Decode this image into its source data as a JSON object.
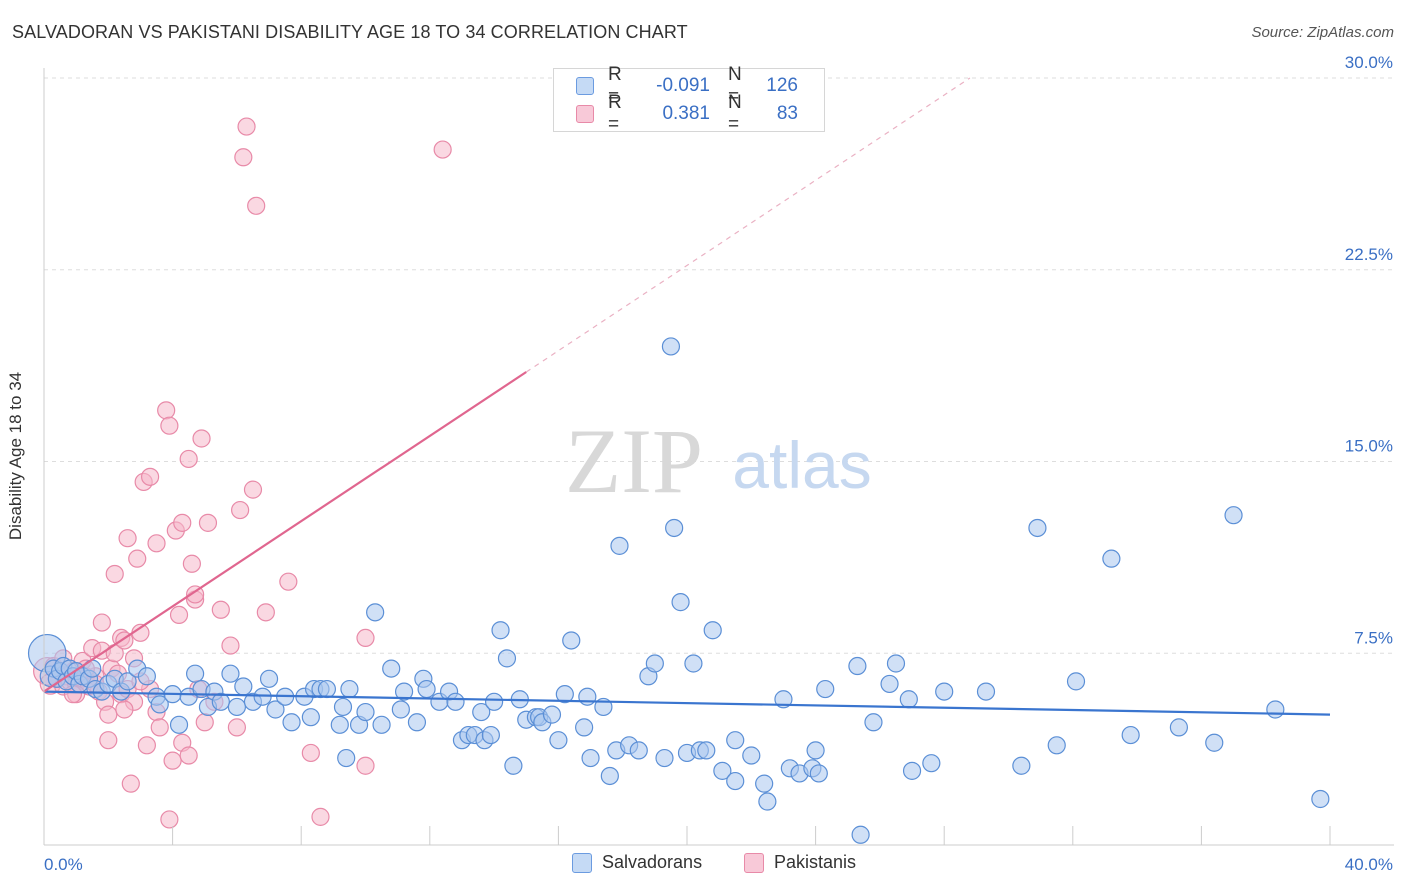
{
  "title": "SALVADORAN VS PAKISTANI DISABILITY AGE 18 TO 34 CORRELATION CHART",
  "source": "Source: ZipAtlas.com",
  "watermark": {
    "zip": "ZIP",
    "atlas": "atlas"
  },
  "colors": {
    "blue_fill": "#a9c7ee",
    "blue_stroke": "#5b8fd6",
    "blue_line": "#3a75cf",
    "pink_fill": "#f5b8cb",
    "pink_stroke": "#e88aa8",
    "pink_line": "#e0668f",
    "grid": "#dddddd",
    "tick_label": "#3a6fc4"
  },
  "legend": {
    "rows": [
      {
        "r_label": "R =",
        "r_value": "-0.091",
        "n_label": "N =",
        "n_value": "126"
      },
      {
        "r_label": "R =",
        "r_value": "0.381",
        "n_label": "N =",
        "n_value": "83"
      }
    ]
  },
  "bottom_legend": {
    "salvadorans": "Salvadorans",
    "pakistanis": "Pakistanis"
  },
  "chart_data": {
    "type": "scatter",
    "title": "SALVADORAN VS PAKISTANI DISABILITY AGE 18 TO 34 CORRELATION CHART",
    "xlabel": "",
    "ylabel": "Disability Age 18 to 34",
    "xlim": [
      0,
      40
    ],
    "ylim": [
      0,
      30
    ],
    "x_tick_labels": [
      "0.0%",
      "40.0%"
    ],
    "y_ticks": [
      7.5,
      15.0,
      22.5,
      30.0
    ],
    "y_tick_labels": [
      "7.5%",
      "15.0%",
      "22.5%",
      "30.0%"
    ],
    "grid": true,
    "series": [
      {
        "name": "Salvadorans",
        "color": "blue",
        "R": -0.091,
        "N": 126,
        "trend": {
          "x0": 0,
          "y0": 6.0,
          "x1": 40,
          "y1": 5.1
        },
        "points": [
          [
            0.1,
            7.5,
            2.2
          ],
          [
            0.2,
            6.6,
            1.2
          ],
          [
            0.3,
            6.9,
            1.0
          ],
          [
            0.4,
            6.5,
            1.0
          ],
          [
            0.5,
            6.8,
            1.0
          ],
          [
            0.6,
            7.0,
            1.0
          ],
          [
            0.7,
            6.4,
            1.0
          ],
          [
            0.8,
            6.9,
            1.0
          ],
          [
            0.9,
            6.6,
            1.0
          ],
          [
            1.0,
            6.8,
            1.0
          ],
          [
            1.1,
            6.3,
            1.0
          ],
          [
            1.2,
            6.6,
            1.0
          ],
          [
            1.4,
            6.5,
            1.0
          ],
          [
            1.5,
            6.9,
            1.0
          ],
          [
            1.6,
            6.1,
            1.0
          ],
          [
            1.8,
            6.0,
            1.0
          ],
          [
            2.0,
            6.3,
            1.0
          ],
          [
            2.2,
            6.5,
            1.0
          ],
          [
            2.4,
            6.0,
            1.0
          ],
          [
            2.6,
            6.4,
            1.0
          ],
          [
            2.9,
            6.9,
            1.0
          ],
          [
            3.2,
            6.6,
            1.0
          ],
          [
            3.5,
            5.8,
            1.0
          ],
          [
            3.6,
            5.5,
            1.0
          ],
          [
            4.0,
            5.9,
            1.0
          ],
          [
            4.2,
            4.7,
            1.0
          ],
          [
            4.5,
            5.8,
            1.0
          ],
          [
            4.7,
            6.7,
            1.0
          ],
          [
            4.9,
            6.1,
            1.0
          ],
          [
            5.1,
            5.4,
            1.0
          ],
          [
            5.3,
            6.0,
            1.0
          ],
          [
            5.5,
            5.6,
            1.0
          ],
          [
            5.8,
            6.7,
            1.0
          ],
          [
            6.0,
            5.4,
            1.0
          ],
          [
            6.2,
            6.2,
            1.0
          ],
          [
            6.5,
            5.6,
            1.0
          ],
          [
            6.8,
            5.8,
            1.0
          ],
          [
            7.0,
            6.5,
            1.0
          ],
          [
            7.2,
            5.3,
            1.0
          ],
          [
            7.5,
            5.8,
            1.0
          ],
          [
            7.7,
            4.8,
            1.0
          ],
          [
            8.1,
            5.8,
            1.0
          ],
          [
            8.3,
            5.0,
            1.0
          ],
          [
            8.4,
            6.1,
            1.0
          ],
          [
            8.6,
            6.1,
            1.0
          ],
          [
            8.8,
            6.1,
            1.0
          ],
          [
            9.2,
            4.7,
            1.0
          ],
          [
            9.3,
            5.4,
            1.0
          ],
          [
            9.4,
            3.4,
            1.0
          ],
          [
            9.5,
            6.1,
            1.0
          ],
          [
            9.8,
            4.7,
            1.0
          ],
          [
            10.0,
            5.2,
            1.0
          ],
          [
            10.3,
            9.1,
            1.0
          ],
          [
            10.5,
            4.7,
            1.0
          ],
          [
            10.8,
            6.9,
            1.0
          ],
          [
            11.1,
            5.3,
            1.0
          ],
          [
            11.2,
            6.0,
            1.0
          ],
          [
            11.6,
            4.8,
            1.0
          ],
          [
            11.8,
            6.5,
            1.0
          ],
          [
            11.9,
            6.1,
            1.0
          ],
          [
            12.3,
            5.6,
            1.0
          ],
          [
            12.6,
            6.0,
            1.0
          ],
          [
            12.8,
            5.6,
            1.0
          ],
          [
            13.0,
            4.1,
            1.0
          ],
          [
            13.2,
            4.3,
            1.0
          ],
          [
            13.4,
            4.3,
            1.0
          ],
          [
            13.6,
            5.2,
            1.0
          ],
          [
            13.7,
            4.1,
            1.0
          ],
          [
            13.9,
            4.3,
            1.0
          ],
          [
            14.0,
            5.6,
            1.0
          ],
          [
            14.2,
            8.4,
            1.0
          ],
          [
            14.4,
            7.3,
            1.0
          ],
          [
            14.6,
            3.1,
            1.0
          ],
          [
            14.8,
            5.7,
            1.0
          ],
          [
            15.0,
            4.9,
            1.0
          ],
          [
            15.3,
            5.0,
            1.0
          ],
          [
            15.4,
            5.0,
            1.0
          ],
          [
            15.5,
            4.8,
            1.0
          ],
          [
            15.8,
            5.1,
            1.0
          ],
          [
            16.0,
            4.1,
            1.0
          ],
          [
            16.2,
            5.9,
            1.0
          ],
          [
            16.4,
            8.0,
            1.0
          ],
          [
            16.8,
            4.6,
            1.0
          ],
          [
            16.9,
            5.8,
            1.0
          ],
          [
            17.0,
            3.4,
            1.0
          ],
          [
            17.4,
            5.4,
            1.0
          ],
          [
            17.6,
            2.7,
            1.0
          ],
          [
            17.9,
            11.7,
            1.0
          ],
          [
            17.8,
            3.7,
            1.0
          ],
          [
            18.2,
            3.9,
            1.0
          ],
          [
            18.5,
            3.7,
            1.0
          ],
          [
            18.8,
            6.6,
            1.0
          ],
          [
            19.0,
            7.1,
            1.0
          ],
          [
            19.3,
            3.4,
            1.0
          ],
          [
            19.6,
            12.4,
            1.0
          ],
          [
            19.8,
            9.5,
            1.0
          ],
          [
            20.0,
            3.6,
            1.0
          ],
          [
            20.2,
            7.1,
            1.0
          ],
          [
            20.4,
            3.7,
            1.0
          ],
          [
            20.6,
            3.7,
            1.0
          ],
          [
            20.8,
            8.4,
            1.0
          ],
          [
            21.1,
            2.9,
            1.0
          ],
          [
            21.5,
            4.1,
            1.0
          ],
          [
            21.5,
            2.5,
            1.0
          ],
          [
            22.0,
            3.5,
            1.0
          ],
          [
            22.4,
            2.4,
            1.0
          ],
          [
            22.5,
            1.7,
            1.0
          ],
          [
            23.0,
            5.7,
            1.0
          ],
          [
            23.2,
            3.0,
            1.0
          ],
          [
            23.5,
            2.8,
            1.0
          ],
          [
            23.9,
            3.0,
            1.0
          ],
          [
            24.0,
            3.7,
            1.0
          ],
          [
            24.1,
            2.8,
            1.0
          ],
          [
            24.3,
            6.1,
            1.0
          ],
          [
            25.3,
            7.0,
            1.0
          ],
          [
            25.8,
            4.8,
            1.0
          ],
          [
            26.3,
            6.3,
            1.0
          ],
          [
            26.5,
            7.1,
            1.0
          ],
          [
            26.9,
            5.7,
            1.0
          ],
          [
            27.0,
            2.9,
            1.0
          ],
          [
            27.6,
            3.2,
            1.0
          ],
          [
            28.0,
            6.0,
            1.0
          ],
          [
            29.3,
            6.0,
            1.0
          ],
          [
            30.4,
            3.1,
            1.0
          ],
          [
            30.9,
            12.4,
            1.0
          ],
          [
            31.5,
            3.9,
            1.0
          ],
          [
            32.1,
            6.4,
            1.0
          ],
          [
            33.2,
            11.2,
            1.0
          ],
          [
            33.8,
            4.3,
            1.0
          ],
          [
            35.3,
            4.6,
            1.0
          ],
          [
            36.4,
            4.0,
            1.0
          ],
          [
            37.0,
            12.9,
            1.0
          ],
          [
            38.3,
            5.3,
            1.0
          ],
          [
            39.7,
            1.8,
            1.0
          ],
          [
            25.4,
            0.4,
            1.0
          ],
          [
            19.5,
            19.5,
            1.0
          ]
        ]
      },
      {
        "name": "Pakistanis",
        "color": "pink",
        "R": 0.381,
        "N": 83,
        "trend": {
          "x0": 0,
          "y0": 6.0,
          "x1": 15,
          "y1": 18.5
        },
        "trend_dashed": {
          "x0": 15,
          "y0": 18.5,
          "x1": 28.8,
          "y1": 30.0
        },
        "points": [
          [
            0.1,
            6.8,
            1.6
          ],
          [
            0.2,
            6.3,
            1.2
          ],
          [
            0.3,
            7.0,
            1.0
          ],
          [
            0.4,
            6.5,
            1.0
          ],
          [
            0.5,
            6.8,
            1.0
          ],
          [
            0.6,
            6.2,
            1.0
          ],
          [
            0.7,
            6.6,
            1.0
          ],
          [
            0.8,
            6.4,
            1.0
          ],
          [
            0.9,
            6.8,
            1.0
          ],
          [
            1.0,
            6.3,
            1.0
          ],
          [
            1.1,
            6.5,
            1.0
          ],
          [
            1.2,
            7.2,
            1.0
          ],
          [
            1.3,
            6.6,
            1.0
          ],
          [
            1.4,
            6.2,
            1.0
          ],
          [
            1.5,
            7.7,
            1.0
          ],
          [
            1.6,
            6.6,
            1.0
          ],
          [
            1.7,
            6.0,
            1.0
          ],
          [
            1.8,
            7.6,
            1.0
          ],
          [
            1.8,
            8.7,
            1.0
          ],
          [
            1.9,
            5.6,
            1.0
          ],
          [
            2.0,
            4.1,
            1.0
          ],
          [
            2.0,
            5.1,
            1.0
          ],
          [
            2.1,
            6.9,
            1.0
          ],
          [
            2.2,
            10.6,
            1.0
          ],
          [
            2.2,
            7.5,
            1.0
          ],
          [
            2.4,
            5.9,
            1.0
          ],
          [
            2.4,
            8.1,
            1.0
          ],
          [
            2.5,
            8.0,
            1.0
          ],
          [
            2.6,
            12.0,
            1.0
          ],
          [
            2.6,
            6.1,
            1.0
          ],
          [
            2.7,
            2.4,
            1.0
          ],
          [
            2.8,
            7.3,
            1.0
          ],
          [
            2.8,
            5.6,
            1.0
          ],
          [
            2.9,
            11.2,
            1.0
          ],
          [
            3.0,
            8.3,
            1.0
          ],
          [
            3.1,
            14.2,
            1.0
          ],
          [
            3.2,
            3.9,
            1.0
          ],
          [
            3.3,
            14.4,
            1.0
          ],
          [
            3.3,
            6.1,
            1.0
          ],
          [
            3.5,
            11.8,
            1.0
          ],
          [
            3.5,
            5.2,
            1.0
          ],
          [
            3.6,
            4.6,
            1.0
          ],
          [
            3.8,
            17.0,
            1.0
          ],
          [
            3.9,
            16.4,
            1.0
          ],
          [
            3.9,
            1.0,
            1.0
          ],
          [
            4.0,
            3.3,
            1.0
          ],
          [
            4.1,
            12.3,
            1.0
          ],
          [
            4.2,
            9.0,
            1.0
          ],
          [
            4.3,
            12.6,
            1.0
          ],
          [
            4.3,
            4.0,
            1.0
          ],
          [
            4.5,
            15.1,
            1.0
          ],
          [
            4.5,
            3.5,
            1.0
          ],
          [
            4.6,
            11.0,
            1.0
          ],
          [
            4.7,
            9.6,
            1.0
          ],
          [
            4.7,
            9.8,
            1.0
          ],
          [
            4.8,
            6.1,
            1.0
          ],
          [
            4.9,
            15.9,
            1.0
          ],
          [
            5.0,
            4.8,
            1.0
          ],
          [
            5.1,
            12.6,
            1.0
          ],
          [
            5.3,
            5.6,
            1.0
          ],
          [
            5.5,
            9.2,
            1.0
          ],
          [
            5.8,
            7.8,
            1.0
          ],
          [
            6.0,
            4.6,
            1.0
          ],
          [
            6.1,
            13.1,
            1.0
          ],
          [
            6.2,
            26.9,
            1.0
          ],
          [
            6.3,
            28.1,
            1.0
          ],
          [
            6.5,
            13.9,
            1.0
          ],
          [
            6.6,
            25.0,
            1.0
          ],
          [
            6.9,
            9.1,
            1.0
          ],
          [
            7.6,
            10.3,
            1.0
          ],
          [
            8.3,
            3.6,
            1.0
          ],
          [
            8.6,
            1.1,
            1.0
          ],
          [
            10.0,
            3.1,
            1.0
          ],
          [
            10.0,
            8.1,
            1.0
          ],
          [
            12.4,
            27.2,
            1.0
          ],
          [
            1.0,
            5.9,
            1.0
          ],
          [
            0.6,
            7.3,
            1.0
          ],
          [
            1.3,
            6.9,
            1.0
          ],
          [
            2.3,
            6.7,
            1.0
          ],
          [
            3.0,
            6.4,
            1.0
          ],
          [
            0.9,
            5.9,
            1.0
          ],
          [
            1.6,
            6.3,
            1.0
          ],
          [
            2.5,
            5.3,
            1.0
          ]
        ]
      }
    ]
  }
}
